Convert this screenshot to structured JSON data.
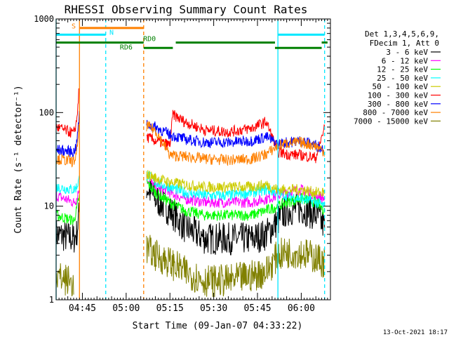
{
  "title": "RHESSI Observing Summary Count Rates",
  "footer_date": "13-Oct-2021 18:17",
  "colors": {
    "cyan": "#00e8ff",
    "orange": "#ff8000",
    "green": "#008000",
    "olive": "#808000"
  },
  "chart_data": {
    "type": "line",
    "title": "RHESSI Observing Summary Count Rates",
    "xlabel": "Start Time (09-Jan-07 04:33:22)",
    "ylabel": "Count Rate (s⁻¹ detector⁻¹)",
    "yscale": "log",
    "ylim": [
      1,
      1000
    ],
    "xlim": [
      "04:36",
      "06:10"
    ],
    "x_ticks": [
      "04:45",
      "05:00",
      "05:15",
      "05:30",
      "05:45",
      "06:00"
    ],
    "y_ticks": [
      "1",
      "10",
      "100",
      "1000"
    ],
    "legend": {
      "position": "top-right",
      "header": [
        "Det 1,3,4,5,6,9,",
        "FDecim 1, Att 0"
      ]
    },
    "series": [
      {
        "name": "3 - 6 keV",
        "color": "#000000",
        "x": [
          "04:36",
          "04:42",
          "04:43",
          "04:44",
          "05:06",
          "05:07",
          "05:10",
          "05:15",
          "05:20",
          "05:27",
          "05:35",
          "05:43",
          "05:48",
          "05:52",
          "05:55",
          "06:00",
          "06:05",
          "06:08"
        ],
        "y": [
          5,
          4.5,
          5,
          9,
          null,
          16,
          12,
          9,
          6,
          4.5,
          4.5,
          4.5,
          5,
          7,
          9,
          9.5,
          8,
          6
        ]
      },
      {
        "name": "6 - 12 keV",
        "color": "#ff00ff",
        "x": [
          "04:36",
          "04:42",
          "04:43",
          "04:44",
          "05:06",
          "05:07",
          "05:10",
          "05:15",
          "05:20",
          "05:27",
          "05:35",
          "05:43",
          "05:48",
          "05:52",
          "05:55",
          "06:00",
          "06:05",
          "06:08"
        ],
        "y": [
          13,
          11,
          12,
          16,
          null,
          20,
          16,
          14,
          12,
          11,
          11,
          11,
          12,
          13,
          14,
          15,
          13,
          12
        ]
      },
      {
        "name": "12 - 25 keV",
        "color": "#00ff00",
        "x": [
          "04:36",
          "04:42",
          "04:43",
          "04:44",
          "05:06",
          "05:07",
          "05:10",
          "05:15",
          "05:20",
          "05:27",
          "05:35",
          "05:43",
          "05:48",
          "05:52",
          "05:55",
          "06:00",
          "06:05",
          "06:08"
        ],
        "y": [
          8,
          7,
          9,
          13,
          null,
          18,
          14,
          11,
          9,
          8,
          8,
          8,
          9,
          10,
          11,
          12,
          11,
          9
        ]
      },
      {
        "name": "25 - 50 keV",
        "color": "#00ffff",
        "x": [
          "04:36",
          "04:42",
          "04:43",
          "04:44",
          "05:06",
          "05:07",
          "05:10",
          "05:15",
          "05:20",
          "05:27",
          "05:35",
          "05:43",
          "05:48",
          "05:52",
          "05:55",
          "06:00",
          "06:05",
          "06:08"
        ],
        "y": [
          16,
          15,
          16,
          20,
          null,
          22,
          18,
          16,
          14,
          13,
          13,
          14,
          15,
          14,
          13,
          12,
          11,
          10
        ]
      },
      {
        "name": "50 - 100 keV",
        "color": "#cccc00",
        "x": [
          "04:36",
          "04:42",
          "04:43",
          "04:44",
          "05:06",
          "05:07",
          "05:10",
          "05:15",
          "05:20",
          "05:27",
          "05:35",
          "05:43",
          "05:48",
          "05:52",
          "05:55",
          "06:00",
          "06:05",
          "06:08"
        ],
        "y": [
          null,
          null,
          null,
          null,
          null,
          22,
          20,
          18,
          17,
          16,
          16,
          16,
          17,
          15,
          15,
          15,
          14,
          14
        ]
      },
      {
        "name": "100 - 300 keV",
        "color": "#ff0000",
        "x": [
          "04:36",
          "04:42",
          "04:43",
          "04:44",
          "05:06",
          "05:07",
          "05:10",
          "05:15",
          "05:16",
          "05:20",
          "05:27",
          "05:35",
          "05:43",
          "05:48",
          "05:52",
          "05:55",
          "06:00",
          "06:05",
          "06:08"
        ],
        "y": [
          70,
          60,
          80,
          200,
          null,
          55,
          50,
          45,
          95,
          80,
          65,
          62,
          68,
          80,
          38,
          36,
          35,
          33,
          70
        ]
      },
      {
        "name": "300 - 800 keV",
        "color": "#0000ff",
        "x": [
          "04:36",
          "04:42",
          "04:43",
          "04:44",
          "05:06",
          "05:07",
          "05:10",
          "05:15",
          "05:20",
          "05:27",
          "05:35",
          "05:43",
          "05:48",
          "05:52",
          "05:55",
          "06:00",
          "06:05",
          "06:08"
        ],
        "y": [
          40,
          38,
          45,
          100,
          null,
          75,
          70,
          58,
          52,
          48,
          48,
          50,
          55,
          46,
          48,
          50,
          45,
          40
        ]
      },
      {
        "name": "800 - 7000 keV",
        "color": "#ff8000",
        "x": [
          "04:36",
          "04:42",
          "04:43",
          "04:44",
          "05:06",
          "05:07",
          "05:10",
          "05:15",
          "05:20",
          "05:27",
          "05:35",
          "05:43",
          "05:48",
          "05:52",
          "05:55",
          "06:00",
          "06:05",
          "06:08"
        ],
        "y": [
          32,
          30,
          35,
          80,
          null,
          72,
          65,
          35,
          34,
          32,
          31,
          32,
          36,
          44,
          47,
          48,
          44,
          38
        ]
      },
      {
        "name": "7000 - 15000 keV",
        "color": "#808000",
        "x": [
          "04:36",
          "04:42",
          "04:43",
          "04:44",
          "05:06",
          "05:07",
          "05:10",
          "05:15",
          "05:20",
          "05:27",
          "05:35",
          "05:43",
          "05:48",
          "05:52",
          "05:55",
          "06:00",
          "06:05",
          "06:08"
        ],
        "y": [
          1.8,
          1.5,
          null,
          null,
          null,
          3.5,
          3,
          2.5,
          2,
          1.6,
          1.6,
          1.8,
          2,
          3,
          3.2,
          3.2,
          2.8,
          2.5
        ]
      }
    ],
    "vertical_lines": [
      {
        "x": "04:36",
        "color": "#00e8ff",
        "style": "solid"
      },
      {
        "x": "04:44",
        "color": "#ff8000",
        "style": "solid"
      },
      {
        "x": "04:53",
        "color": "#00e8ff",
        "style": "dashed"
      },
      {
        "x": "05:06",
        "color": "#ff8000",
        "style": "dashed"
      },
      {
        "x": "05:52",
        "color": "#00e8ff",
        "style": "solid"
      },
      {
        "x": "06:08",
        "color": "#00e8ff",
        "style": "dashed"
      }
    ],
    "annotation_bars": [
      {
        "label": "S",
        "color": "#ff8000",
        "x_start": "04:44",
        "x_end": "05:06",
        "y": 800
      },
      {
        "label": "N",
        "color": "#00e8ff",
        "x_start": "04:36",
        "x_end": "04:53",
        "y": 680
      },
      {
        "label": "N",
        "color": "#00e8ff",
        "x_start": "05:52",
        "x_end": "06:08",
        "y": 680
      },
      {
        "label": "RD0",
        "color": "#008000",
        "x_start": "04:36",
        "x_end": "05:06",
        "y": 560
      },
      {
        "label": "RD0",
        "color": "#008000",
        "x_start": "05:17",
        "x_end": "05:51",
        "y": 560
      },
      {
        "label": "RD0",
        "color": "#008000",
        "x_start": "06:07",
        "x_end": "06:09",
        "y": 560
      },
      {
        "label": "RD6",
        "color": "#008000",
        "x_start": "05:06",
        "x_end": "05:16",
        "y": 490
      },
      {
        "label": "RD6",
        "color": "#008000",
        "x_start": "05:51",
        "x_end": "06:07",
        "y": 490
      }
    ],
    "bar_labels": [
      {
        "text": "S",
        "x": "04:42",
        "y": 790,
        "color": "#ff8000"
      },
      {
        "text": "N",
        "x": "04:55",
        "y": 680,
        "color": "#00e8ff"
      },
      {
        "text": "RD0",
        "x": "05:08",
        "y": 580,
        "color": "#008000"
      },
      {
        "text": "RD6",
        "x": "05:00",
        "y": 470,
        "color": "#008000"
      }
    ]
  }
}
